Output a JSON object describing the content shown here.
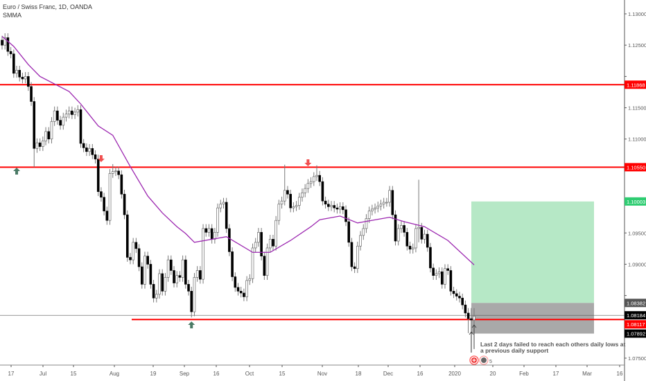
{
  "header": {
    "title": "Euro / Swiss Franc, 1D, OANDA",
    "indicator": "SMMA"
  },
  "annotation_text": "Last 2 days failed to reach each others daily lows at a previous daily support",
  "event_badge_count": "5",
  "colors": {
    "up": "#ffffff",
    "down": "#000000",
    "wick": "#777777",
    "smma": "#9c27b0",
    "level": "#ff0000",
    "target_zone": "#b6e8c6",
    "stop_zone": "#a9a9a9",
    "green_label": "#2ecc71",
    "arrow_up": "#4a7a65",
    "arrow_down": "#f05050"
  },
  "chart_data": {
    "type": "candlestick",
    "symbol": "EURCHF",
    "timeframe": "1D",
    "ylim": [
      1.0725,
      1.1322
    ],
    "yticks": [
      "1.13000",
      "1.12500",
      "1.12000",
      "1.11500",
      "1.11000",
      "1.10500",
      "1.10000",
      "1.09500",
      "1.09000",
      "1.08500",
      "1.08000",
      "1.07500"
    ],
    "xticks": [
      "17",
      "Jul",
      "15",
      "Aug",
      "19",
      "Sep",
      "16",
      "Oct",
      "15",
      "Nov",
      "18",
      "Dec",
      "16",
      "2020",
      "20",
      "Feb",
      "17",
      "Mar",
      "16"
    ],
    "close": [
      1.125,
      1.1262,
      1.124,
      1.1236,
      1.1205,
      1.121,
      1.1199,
      1.1196,
      1.12,
      1.1184,
      1.116,
      1.1085,
      1.1094,
      1.1088,
      1.1097,
      1.1112,
      1.11,
      1.1128,
      1.1145,
      1.113,
      1.1122,
      1.1135,
      1.114,
      1.1145,
      1.1139,
      1.1143,
      1.1147,
      1.1093,
      1.1086,
      1.108,
      1.1085,
      1.1075,
      1.1068,
      1.1016,
      1.1007,
      1.0985,
      1.097,
      1.1045,
      1.1048,
      1.1049,
      1.1043,
      1.1012,
      1.0979,
      1.0911,
      1.0907,
      1.0935,
      1.0925,
      1.0896,
      1.0868,
      1.0913,
      1.09,
      1.0868,
      1.0846,
      1.0852,
      1.0885,
      1.0857,
      1.0879,
      1.0907,
      1.089,
      1.087,
      1.0882,
      1.0879,
      1.0907,
      1.0868,
      1.0857,
      1.0824,
      1.0879,
      1.089,
      1.0876,
      1.0957,
      1.0951,
      1.0957,
      1.094,
      1.0951,
      1.099,
      1.0996,
      1.0999,
      1.0957,
      1.092,
      1.088,
      1.0863,
      1.0857,
      1.0854,
      1.0848,
      1.0874,
      1.0877,
      1.0926,
      1.0935,
      1.0951,
      1.0913,
      1.0882,
      1.0926,
      1.094,
      1.0929,
      1.097,
      1.0996,
      1.1001,
      1.1018,
      1.1012,
      1.099,
      1.0992,
      1.0994,
      1.1007,
      1.1014,
      1.1021,
      1.1029,
      1.1032,
      1.104,
      1.1042,
      1.1032,
      1.1001,
      1.0996,
      1.0992,
      1.0994,
      1.099,
      1.0988,
      1.0992,
      1.0987,
      1.0968,
      1.0935,
      1.0896,
      1.0893,
      1.0929,
      1.0946,
      1.0957,
      1.0973,
      1.0985,
      1.0988,
      1.099,
      1.0993,
      1.0996,
      1.0999,
      1.0999,
      1.1018,
      1.0979,
      1.0937,
      1.0957,
      1.0962,
      1.0951,
      1.0929,
      1.0924,
      1.0926,
      1.0957,
      1.0959,
      1.094,
      1.0948,
      1.0927,
      1.0894,
      1.0882,
      1.0885,
      1.0888,
      1.0868,
      1.0893,
      1.089,
      1.0857,
      1.0853,
      1.0849,
      1.0846,
      1.0835,
      1.0822,
      1.0813,
      1.0811,
      1.0817
    ],
    "notable_wicks": [
      [
        11,
        1.116,
        1.1055
      ],
      [
        38,
        1.106,
        1.104
      ],
      [
        65,
        1.0857,
        1.0815
      ],
      [
        97,
        1.1059,
        1.1005
      ],
      [
        108,
        1.1058,
        1.1035
      ],
      [
        143,
        1.1035,
        1.0935
      ],
      [
        160,
        1.083,
        1.079
      ],
      [
        161,
        1.083,
        1.0759
      ],
      [
        162,
        1.083,
        1.0766
      ]
    ],
    "smma": [
      [
        0,
        1.1264
      ],
      [
        4,
        1.1248
      ],
      [
        9,
        1.1219
      ],
      [
        13,
        1.12
      ],
      [
        23,
        1.1176
      ],
      [
        27,
        1.1156
      ],
      [
        33,
        1.1121
      ],
      [
        38,
        1.1106
      ],
      [
        44,
        1.1056
      ],
      [
        50,
        1.1009
      ],
      [
        55,
        1.0982
      ],
      [
        60,
        1.096
      ],
      [
        63,
        1.0949
      ],
      [
        66,
        1.0935
      ],
      [
        77,
        1.0944
      ],
      [
        86,
        1.0919
      ],
      [
        92,
        1.0919
      ],
      [
        99,
        1.0938
      ],
      [
        106,
        1.096
      ],
      [
        109,
        1.0971
      ],
      [
        116,
        1.0977
      ],
      [
        122,
        1.0966
      ],
      [
        133,
        1.0975
      ],
      [
        138,
        1.0968
      ],
      [
        145,
        1.096
      ],
      [
        153,
        1.0938
      ],
      [
        162,
        1.0899
      ]
    ],
    "levels": [
      {
        "price": 1.11868,
        "label": "1.11868",
        "kind": "resistance"
      },
      {
        "price": 1.1055,
        "label": "1.10550",
        "kind": "resistance"
      },
      {
        "price": 1.08117,
        "label": "1.08117",
        "kind": "support"
      }
    ],
    "last_price": {
      "price": 1.08184,
      "label": "1.08184"
    },
    "position": {
      "entry": 1.08382,
      "entry_label": "1.08382",
      "target": 1.10003,
      "target_label": "1.10003",
      "stop": 1.07892,
      "stop_label": "1.07892"
    },
    "markers": [
      {
        "bar": 5,
        "dir": "up"
      },
      {
        "bar": 34,
        "dir": "down"
      },
      {
        "bar": 65,
        "dir": "up"
      },
      {
        "bar": 105,
        "dir": "down"
      }
    ]
  }
}
